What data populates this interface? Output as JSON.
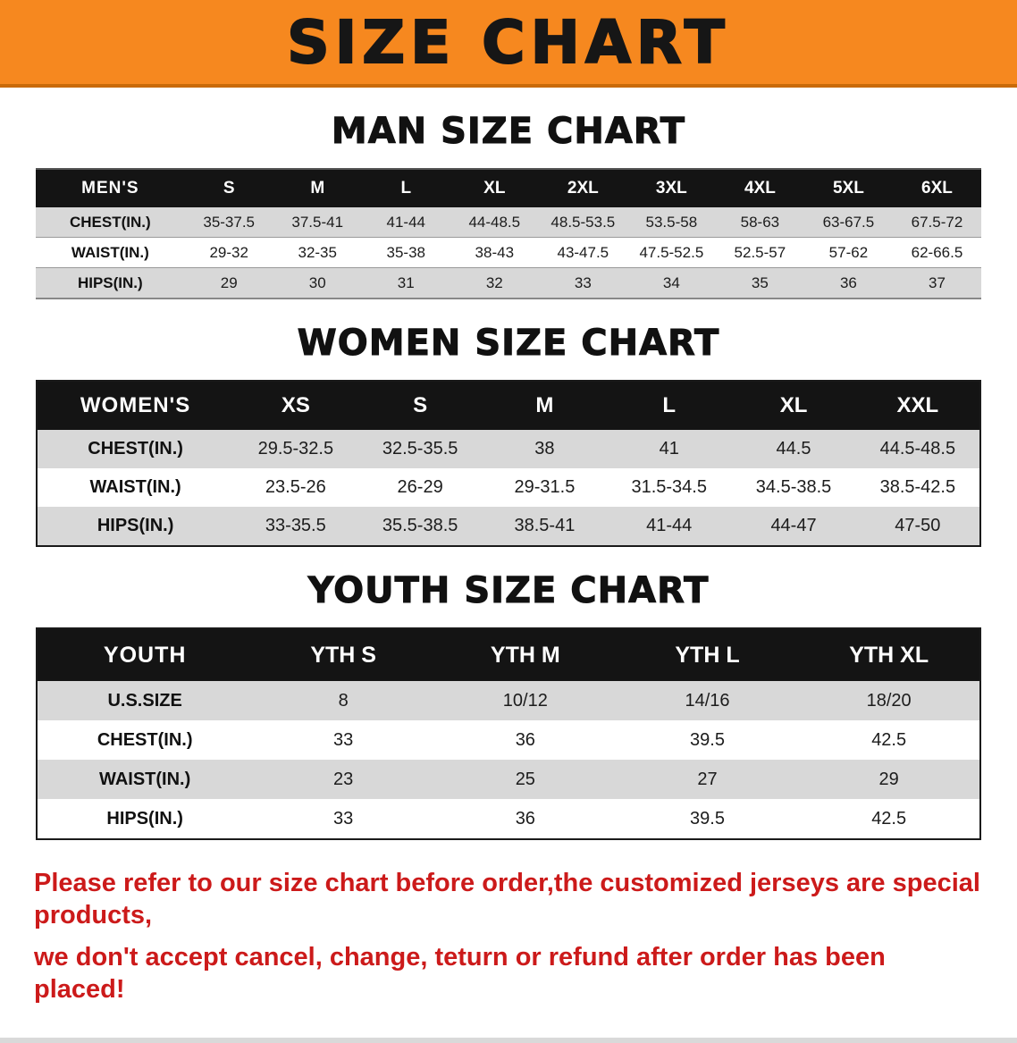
{
  "banner": {
    "title": "SIZE CHART",
    "bg_color": "#f6881f",
    "text_color": "#161616"
  },
  "sections": {
    "men": {
      "heading": "MAN SIZE CHART"
    },
    "women": {
      "heading": "WOMEN SIZE CHART"
    },
    "youth": {
      "heading": "YOUTH SIZE CHART"
    }
  },
  "tables": {
    "men": {
      "header_label": "MEN'S",
      "sizes": [
        "S",
        "M",
        "L",
        "XL",
        "2XL",
        "3XL",
        "4XL",
        "5XL",
        "6XL"
      ],
      "rows": [
        {
          "label": "CHEST(IN.)",
          "values": [
            "35-37.5",
            "37.5-41",
            "41-44",
            "44-48.5",
            "48.5-53.5",
            "53.5-58",
            "58-63",
            "63-67.5",
            "67.5-72"
          ]
        },
        {
          "label": "WAIST(IN.)",
          "values": [
            "29-32",
            "32-35",
            "35-38",
            "38-43",
            "43-47.5",
            "47.5-52.5",
            "52.5-57",
            "57-62",
            "62-66.5"
          ]
        },
        {
          "label": "HIPS(IN.)",
          "values": [
            "29",
            "30",
            "31",
            "32",
            "33",
            "34",
            "35",
            "36",
            "37"
          ]
        }
      ]
    },
    "women": {
      "header_label": "WOMEN'S",
      "sizes": [
        "XS",
        "S",
        "M",
        "L",
        "XL",
        "XXL"
      ],
      "rows": [
        {
          "label": "CHEST(IN.)",
          "values": [
            "29.5-32.5",
            "32.5-35.5",
            "38",
            "41",
            "44.5",
            "44.5-48.5"
          ]
        },
        {
          "label": "WAIST(IN.)",
          "values": [
            "23.5-26",
            "26-29",
            "29-31.5",
            "31.5-34.5",
            "34.5-38.5",
            "38.5-42.5"
          ]
        },
        {
          "label": "HIPS(IN.)",
          "values": [
            "33-35.5",
            "35.5-38.5",
            "38.5-41",
            "41-44",
            "44-47",
            "47-50"
          ]
        }
      ]
    },
    "youth": {
      "header_label": "YOUTH",
      "sizes": [
        "YTH S",
        "YTH M",
        "YTH L",
        "YTH XL"
      ],
      "rows": [
        {
          "label": "U.S.SIZE",
          "values": [
            "8",
            "10/12",
            "14/16",
            "18/20"
          ]
        },
        {
          "label": "CHEST(IN.)",
          "values": [
            "33",
            "36",
            "39.5",
            "42.5"
          ]
        },
        {
          "label": "WAIST(IN.)",
          "values": [
            "23",
            "25",
            "27",
            "29"
          ]
        },
        {
          "label": "HIPS(IN.)",
          "values": [
            "33",
            "36",
            "39.5",
            "42.5"
          ]
        }
      ]
    }
  },
  "disclaimer": {
    "line1": "Please refer to our size chart before order,the customized jerseys are special products,",
    "line2": "we don't accept cancel, change, teturn or refund after order has been placed!",
    "color": "#cc1a1a"
  }
}
